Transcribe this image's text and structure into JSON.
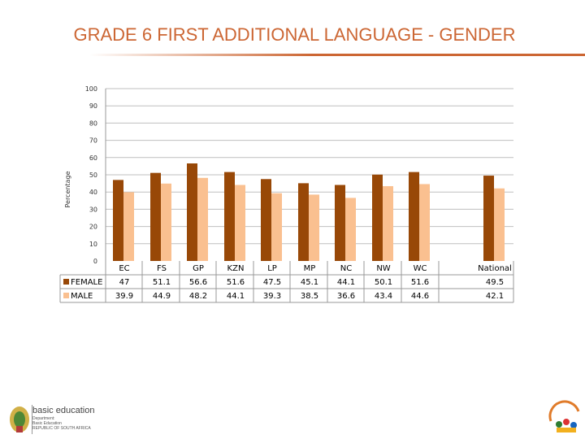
{
  "title": "GRADE 6 FIRST ADDITIONAL LANGUAGE - GENDER",
  "chart_data": {
    "type": "bar",
    "title": "GRADE 6 FIRST ADDITIONAL LANGUAGE - GENDER",
    "ylabel": "Percentage",
    "xlabel": "",
    "ylim": [
      0,
      100
    ],
    "yticks": [
      0,
      10,
      20,
      30,
      40,
      50,
      60,
      70,
      80,
      90,
      100
    ],
    "grid": true,
    "legend": "data-table-left",
    "categories": [
      "EC",
      "FS",
      "GP",
      "KZN",
      "LP",
      "MP",
      "NC",
      "NW",
      "WC",
      "National"
    ],
    "series": [
      {
        "name": "FEMALE",
        "color": "#984807",
        "values": [
          47,
          51.1,
          56.6,
          51.6,
          47.5,
          45.1,
          44.1,
          50.1,
          51.6,
          49.5
        ]
      },
      {
        "name": "MALE",
        "color": "#fac090",
        "values": [
          39.9,
          44.9,
          48.2,
          44.1,
          39.3,
          38.5,
          36.6,
          43.4,
          44.6,
          42.1
        ]
      }
    ],
    "value_labels": {
      "FEMALE": [
        "47",
        "51.1",
        "56.6",
        "51.6",
        "47.5",
        "45.1",
        "44.1",
        "50.1",
        "51.6",
        "49.5"
      ],
      "MALE": [
        "39.9",
        "44.9",
        "48.2",
        "44.1",
        "39.3",
        "38.5",
        "36.6",
        "43.4",
        "44.6",
        "42.1"
      ]
    }
  },
  "footer": {
    "logo_main": "basic education",
    "logo_sub": [
      "Department:",
      "Basic Education",
      "REPUBLIC OF SOUTH AFRICA"
    ],
    "left_logo_icon": "coat-of-arms-icon",
    "right_logo_icon": "twenty-years-freedom-logo-icon"
  }
}
